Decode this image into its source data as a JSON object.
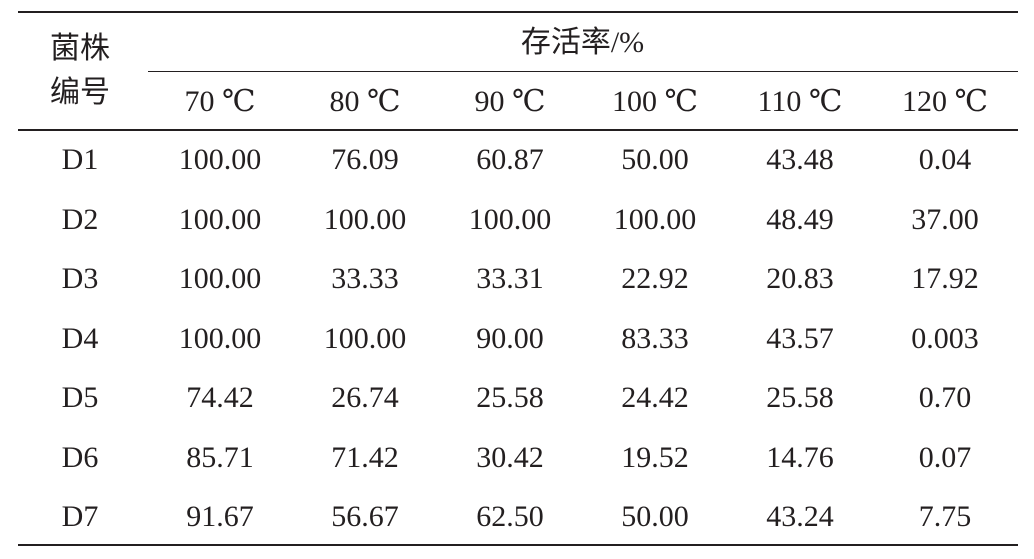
{
  "table": {
    "corner": [
      "菌株",
      "编号"
    ],
    "group_header": "存活率/%",
    "columns": [
      "70 ℃",
      "80 ℃",
      "90 ℃",
      "100 ℃",
      "110 ℃",
      "120 ℃"
    ],
    "rows": [
      [
        "D1",
        "100.00",
        "76.09",
        "60.87",
        "50.00",
        "43.48",
        "0.04"
      ],
      [
        "D2",
        "100.00",
        "100.00",
        "100.00",
        "100.00",
        "48.49",
        "37.00"
      ],
      [
        "D3",
        "100.00",
        "33.33",
        "33.31",
        "22.92",
        "20.83",
        "17.92"
      ],
      [
        "D4",
        "100.00",
        "100.00",
        "90.00",
        "83.33",
        "43.57",
        "0.003"
      ],
      [
        "D5",
        "74.42",
        "26.74",
        "25.58",
        "24.42",
        "25.58",
        "0.70"
      ],
      [
        "D6",
        "85.71",
        "71.42",
        "30.42",
        "19.52",
        "14.76",
        "0.07"
      ],
      [
        "D7",
        "91.67",
        "56.67",
        "62.50",
        "50.00",
        "43.24",
        "7.75"
      ]
    ]
  }
}
